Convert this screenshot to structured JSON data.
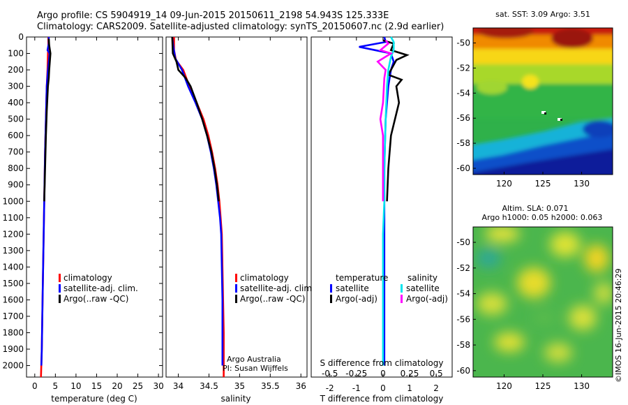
{
  "header": {
    "title_line1": "Argo profile: CS 5904919_14 09-Jun-2015 20150611_2198 54.943S 125.333E",
    "title_line2": "Climatology: CARS2009. Satellite-adjusted climatology: synTS_20150607.nc (2.9d earlier)"
  },
  "side_label": "©IMOS 16-Jun-2015 20:46:29",
  "chart_data": [
    {
      "type": "line",
      "xlabel": "temperature (deg C)",
      "xlim": [
        -2,
        31
      ],
      "ylim": [
        2070,
        0
      ],
      "x_ticks": [
        0,
        5,
        10,
        15,
        20,
        25,
        30
      ],
      "y_ticks": [
        0,
        100,
        200,
        300,
        400,
        500,
        600,
        700,
        800,
        900,
        1000,
        1100,
        1200,
        1300,
        1400,
        1500,
        1600,
        1700,
        1800,
        1900,
        2000
      ],
      "legend": [
        "climatology",
        "satellite-adj. clim.",
        "Argo(..raw -QC)"
      ],
      "legend_position": "lower-right",
      "series": [
        {
          "name": "climatology",
          "color": "#ff0000",
          "points": [
            [
              3.3,
              0
            ],
            [
              3.3,
              50
            ],
            [
              3.2,
              100
            ],
            [
              3.1,
              200
            ],
            [
              2.9,
              300
            ],
            [
              2.7,
              500
            ],
            [
              2.5,
              700
            ],
            [
              2.3,
              1000
            ],
            [
              2.1,
              1300
            ],
            [
              1.9,
              1600
            ],
            [
              1.7,
              1900
            ],
            [
              1.5,
              2070
            ]
          ]
        },
        {
          "name": "satellite-adj. clim.",
          "color": "#0000ff",
          "points": [
            [
              3.4,
              0
            ],
            [
              3.4,
              40
            ],
            [
              3.1,
              80
            ],
            [
              3.6,
              100
            ],
            [
              3.2,
              200
            ],
            [
              2.9,
              300
            ],
            [
              2.7,
              500
            ],
            [
              2.5,
              700
            ],
            [
              2.3,
              1000
            ],
            [
              2.1,
              1300
            ],
            [
              1.9,
              1600
            ],
            [
              1.7,
              1900
            ],
            [
              1.6,
              2000
            ]
          ]
        },
        {
          "name": "Argo(..raw -QC)",
          "color": "#000000",
          "points": [
            [
              3.4,
              10
            ],
            [
              3.5,
              50
            ],
            [
              3.8,
              100
            ],
            [
              3.5,
              200
            ],
            [
              3.4,
              250
            ],
            [
              3.2,
              300
            ],
            [
              2.9,
              450
            ],
            [
              2.7,
              600
            ],
            [
              2.5,
              800
            ],
            [
              2.3,
              1000
            ]
          ]
        }
      ]
    },
    {
      "type": "line",
      "xlabel": "salinity",
      "xlim": [
        33.8,
        36.1
      ],
      "ylim": [
        2070,
        0
      ],
      "x_ticks": [
        34,
        34.5,
        35,
        35.5,
        36
      ],
      "x_tick_labels": [
        "34",
        "34.5",
        "35",
        "35.5",
        "36"
      ],
      "legend": [
        "climatology",
        "satellite-adj. clim.",
        "Argo(..raw -QC)"
      ],
      "legend_position": "lower-right",
      "annotation": [
        "Argo Australia",
        "PI: Susan Wijffels"
      ],
      "series": [
        {
          "name": "climatology",
          "color": "#ff0000",
          "points": [
            [
              33.93,
              0
            ],
            [
              33.93,
              80
            ],
            [
              33.96,
              140
            ],
            [
              34.08,
              200
            ],
            [
              34.18,
              300
            ],
            [
              34.3,
              400
            ],
            [
              34.41,
              500
            ],
            [
              34.49,
              600
            ],
            [
              34.55,
              700
            ],
            [
              34.6,
              800
            ],
            [
              34.64,
              900
            ],
            [
              34.67,
              1000
            ],
            [
              34.69,
              1100
            ],
            [
              34.71,
              1200
            ],
            [
              34.72,
              1400
            ],
            [
              34.73,
              1600
            ],
            [
              34.74,
              1800
            ],
            [
              34.74,
              2070
            ]
          ]
        },
        {
          "name": "satellite-adj. clim.",
          "color": "#0000ff",
          "points": [
            [
              33.9,
              0
            ],
            [
              33.92,
              60
            ],
            [
              33.95,
              130
            ],
            [
              34.06,
              200
            ],
            [
              34.16,
              300
            ],
            [
              34.28,
              400
            ],
            [
              34.39,
              500
            ],
            [
              34.47,
              600
            ],
            [
              34.53,
              700
            ],
            [
              34.58,
              800
            ],
            [
              34.62,
              900
            ],
            [
              34.65,
              1000
            ],
            [
              34.68,
              1100
            ],
            [
              34.7,
              1200
            ],
            [
              34.71,
              1400
            ],
            [
              34.72,
              1600
            ],
            [
              34.72,
              1800
            ],
            [
              34.72,
              2000
            ]
          ]
        },
        {
          "name": "Argo(..raw -QC)",
          "color": "#000000",
          "points": [
            [
              33.9,
              0
            ],
            [
              33.91,
              100
            ],
            [
              33.97,
              150
            ],
            [
              34.0,
              200
            ],
            [
              34.12,
              250
            ],
            [
              34.2,
              300
            ],
            [
              34.3,
              400
            ],
            [
              34.39,
              500
            ],
            [
              34.47,
              600
            ],
            [
              34.54,
              700
            ],
            [
              34.59,
              800
            ],
            [
              34.63,
              900
            ],
            [
              34.66,
              1000
            ]
          ]
        }
      ]
    },
    {
      "type": "line",
      "xlabel": "T difference from climatology",
      "top_label": "S difference from climatology",
      "xlim": [
        -2.7,
        2.6
      ],
      "ylim": [
        2070,
        0
      ],
      "x_ticks": [
        -2,
        -1,
        0,
        1,
        2
      ],
      "top_ticks": [
        -0.5,
        -0.25,
        0,
        0.25,
        0.5
      ],
      "top_tick_labels": [
        "-0.5",
        "-0.25",
        "0",
        "0.25",
        "0.5"
      ],
      "legend_groups": [
        {
          "title": "temperature",
          "items": [
            {
              "label": "satellite",
              "color": "#0000ff"
            },
            {
              "label": "Argo(-adj)",
              "color": "#000000"
            }
          ]
        },
        {
          "title": "salinity",
          "items": [
            {
              "label": "satellite",
              "color": "#00e5ee"
            },
            {
              "label": "Argo(-adj)",
              "color": "#ff00ff"
            }
          ]
        }
      ],
      "series": [
        {
          "name": "temperature satellite",
          "color": "#0000ff",
          "points": [
            [
              0.05,
              0
            ],
            [
              0.1,
              30
            ],
            [
              -0.9,
              60
            ],
            [
              -0.3,
              80
            ],
            [
              0.3,
              100
            ],
            [
              0.4,
              150
            ],
            [
              0.3,
              200
            ],
            [
              0.2,
              300
            ],
            [
              0.1,
              500
            ],
            [
              0.05,
              800
            ],
            [
              0.05,
              1200
            ],
            [
              0.05,
              1600
            ],
            [
              0.05,
              2000
            ]
          ]
        },
        {
          "name": "temperature Argo(-adj)",
          "color": "#000000",
          "points": [
            [
              0.0,
              20
            ],
            [
              0.4,
              40
            ],
            [
              0.3,
              80
            ],
            [
              0.9,
              110
            ],
            [
              0.5,
              140
            ],
            [
              0.3,
              200
            ],
            [
              0.2,
              230
            ],
            [
              0.7,
              260
            ],
            [
              0.5,
              300
            ],
            [
              0.6,
              400
            ],
            [
              0.3,
              600
            ],
            [
              0.2,
              800
            ],
            [
              0.15,
              1000
            ]
          ]
        },
        {
          "name": "salinity satellite",
          "color": "#00e5ee",
          "points": [
            [
              0.3,
              0
            ],
            [
              0.4,
              30
            ],
            [
              0.4,
              80
            ],
            [
              0.3,
              120
            ],
            [
              0.2,
              200
            ],
            [
              0.15,
              300
            ],
            [
              0.1,
              500
            ],
            [
              0.05,
              800
            ],
            [
              0.05,
              1000
            ],
            [
              0.0,
              1200
            ],
            [
              0.0,
              1600
            ],
            [
              0.0,
              2000
            ]
          ]
        },
        {
          "name": "salinity Argo(-adj)",
          "color": "#ff00ff",
          "points": [
            [
              0.1,
              20
            ],
            [
              0.2,
              40
            ],
            [
              -0.1,
              80
            ],
            [
              0.3,
              100
            ],
            [
              -0.2,
              150
            ],
            [
              0.1,
              200
            ],
            [
              0.05,
              250
            ],
            [
              0.0,
              400
            ],
            [
              -0.1,
              500
            ],
            [
              0.0,
              600
            ],
            [
              0.0,
              800
            ],
            [
              0.0,
              1000
            ]
          ]
        }
      ]
    },
    {
      "type": "heatmap",
      "title": "sat. SST: 3.09 Argo: 3.51",
      "xlim": [
        116,
        134
      ],
      "ylim": [
        -60.5,
        -48.8
      ],
      "x_ticks": [
        120,
        125,
        130
      ],
      "y_ticks": [
        -50,
        -52,
        -54,
        -56,
        -58,
        -60
      ],
      "marker": [
        125.3,
        -54.9
      ]
    },
    {
      "type": "heatmap",
      "title_line1": "Altim. SLA: 0.071",
      "title_line2": "Argo h1000: 0.05 h2000: 0.063",
      "xlim": [
        116,
        134
      ],
      "ylim": [
        -60.5,
        -48.8
      ],
      "x_ticks": [
        120,
        125,
        130
      ],
      "y_ticks": [
        -50,
        -52,
        -54,
        -56,
        -58,
        -60
      ],
      "marker": [
        125.3,
        -54.9
      ]
    }
  ]
}
